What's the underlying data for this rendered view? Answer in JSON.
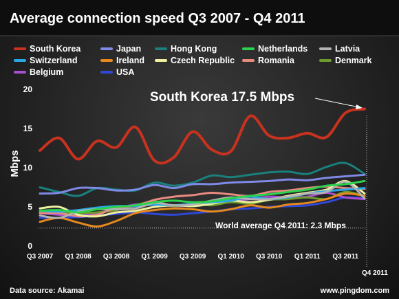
{
  "chart_data": {
    "type": "line",
    "title": "Average connection speed Q3 2007 - Q4 2011",
    "ylabel": "Mbps",
    "ylim": [
      0,
      20
    ],
    "yticks": [
      0,
      5,
      10,
      15,
      20
    ],
    "x": [
      "Q3 2007",
      "Q4 2007",
      "Q1 2008",
      "Q2 2008",
      "Q3 2008",
      "Q4 2008",
      "Q1 2009",
      "Q2 2009",
      "Q3 2009",
      "Q4 2009",
      "Q1 2010",
      "Q2 2010",
      "Q3 2010",
      "Q4 2010",
      "Q1 2011",
      "Q2 2011",
      "Q3 2011",
      "Q4 2011"
    ],
    "xtick_labels": [
      "Q3 2007",
      "Q1 2008",
      "Q3 2008",
      "Q1 2009",
      "Q3 2009",
      "Q1 2010",
      "Q3 2010",
      "Q1 2011",
      "Q3 2011"
    ],
    "last_tick_label": "Q4 2011",
    "grid": false,
    "legend_position": "top",
    "series": [
      {
        "name": "South Korea",
        "color": "#c8321e",
        "values": [
          12.2,
          13.8,
          11.1,
          13.4,
          12.6,
          15.2,
          10.9,
          11.3,
          14.6,
          12.3,
          12.1,
          16.6,
          14.1,
          13.8,
          14.4,
          13.9,
          17.0,
          17.5
        ]
      },
      {
        "name": "Japan",
        "color": "#7e8ae6",
        "values": [
          6.7,
          6.8,
          7.4,
          7.4,
          7.1,
          7.2,
          7.8,
          7.4,
          7.9,
          7.9,
          8.1,
          8.2,
          8.3,
          8.5,
          8.4,
          8.7,
          8.9,
          9.1
        ]
      },
      {
        "name": "Hong Kong",
        "color": "#19807e",
        "values": [
          7.5,
          6.9,
          6.4,
          7.4,
          7.2,
          7.1,
          8.1,
          7.7,
          8.1,
          9.0,
          8.8,
          9.1,
          9.4,
          9.5,
          9.2,
          10.1,
          10.6,
          9.2
        ]
      },
      {
        "name": "Netherlands",
        "color": "#2bd24e",
        "values": [
          4.5,
          4.6,
          4.3,
          4.7,
          5.0,
          5.2,
          5.6,
          5.8,
          5.6,
          5.7,
          6.1,
          6.4,
          6.6,
          6.9,
          7.2,
          7.7,
          7.9,
          8.3
        ]
      },
      {
        "name": "Latvia",
        "color": "#b3b3b3",
        "values": [
          3.9,
          3.6,
          4.4,
          4.7,
          4.7,
          4.8,
          5.5,
          5.2,
          5.3,
          5.8,
          6.2,
          6.0,
          6.0,
          6.3,
          6.7,
          6.9,
          8.2,
          6.1
        ]
      },
      {
        "name": "Switzerland",
        "color": "#28a8e6",
        "values": [
          4.5,
          4.4,
          4.6,
          4.9,
          5.1,
          5.1,
          5.3,
          5.2,
          5.4,
          5.6,
          5.8,
          6.3,
          6.0,
          6.2,
          6.7,
          7.0,
          7.2,
          7.4
        ]
      },
      {
        "name": "Ireland",
        "color": "#e6891e",
        "values": [
          3.1,
          3.6,
          3.0,
          2.5,
          3.2,
          4.2,
          4.6,
          4.8,
          4.7,
          4.4,
          4.7,
          5.2,
          4.9,
          5.3,
          5.5,
          6.0,
          6.7,
          6.4
        ]
      },
      {
        "name": "Czech Republic",
        "color": "#eef0a0",
        "values": [
          4.8,
          5.0,
          4.0,
          3.8,
          4.3,
          4.5,
          5.0,
          5.2,
          5.1,
          5.4,
          5.8,
          5.6,
          5.9,
          6.4,
          6.8,
          7.2,
          8.3,
          6.7
        ]
      },
      {
        "name": "Romania",
        "color": "#e88a80",
        "values": [
          4.2,
          4.2,
          3.8,
          4.0,
          4.9,
          5.1,
          5.9,
          6.3,
          6.5,
          6.8,
          6.6,
          6.4,
          6.9,
          7.1,
          7.4,
          7.6,
          7.4,
          7.3
        ]
      },
      {
        "name": "Denmark",
        "color": "#6f9a2c",
        "values": [
          4.4,
          4.3,
          4.2,
          4.3,
          4.6,
          5.2,
          5.7,
          5.1,
          5.4,
          5.2,
          5.6,
          5.4,
          5.9,
          6.0,
          6.2,
          6.0,
          6.9,
          6.4
        ]
      },
      {
        "name": "Belgium",
        "color": "#a550d2",
        "values": [
          4.2,
          4.0,
          3.9,
          4.2,
          4.8,
          5.3,
          5.4,
          5.1,
          5.2,
          5.4,
          5.7,
          6.0,
          6.3,
          6.2,
          6.3,
          6.8,
          6.2,
          6.0
        ]
      },
      {
        "name": "USA",
        "color": "#2f48d8",
        "values": [
          3.6,
          3.6,
          3.7,
          3.9,
          4.1,
          4.3,
          4.1,
          4.0,
          4.2,
          4.4,
          4.7,
          4.8,
          5.0,
          5.1,
          5.2,
          5.6,
          6.2,
          6.1
        ]
      }
    ],
    "annotations": [
      {
        "text": "South Korea 17.5 Mbps"
      },
      {
        "text": "World average Q4 2011: 2.3 Mbps"
      }
    ]
  },
  "footer": {
    "source": "Data source: Akamai",
    "site": "www.pingdom.com"
  }
}
